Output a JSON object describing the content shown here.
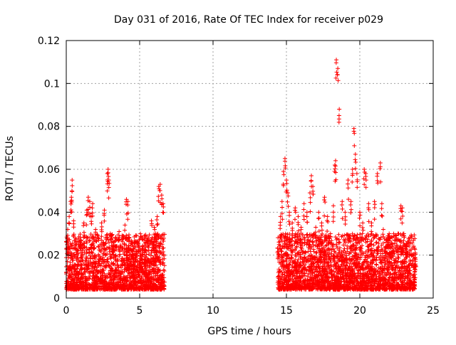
{
  "chart_data": {
    "type": "scatter",
    "title": "Day 031 of 2016, Rate Of TEC Index for receiver p029",
    "xlabel": "GPS time / hours",
    "ylabel": "ROTI / TECUs",
    "xlim": [
      0,
      25
    ],
    "ylim": [
      0,
      0.12
    ],
    "xticks": [
      0,
      5,
      10,
      15,
      20,
      25
    ],
    "yticks": [
      0,
      0.02,
      0.04,
      0.06,
      0.08,
      0.1,
      0.12
    ],
    "xtick_labels": [
      "0",
      "5",
      "10",
      "15",
      "20",
      "25"
    ],
    "ytick_labels": [
      "0",
      "0.02",
      "0.04",
      "0.06",
      "0.08",
      "0.1",
      "0.12"
    ],
    "grid": true,
    "marker": "+",
    "color": "#ff0000",
    "series": [
      {
        "x": [
          0.1,
          0.2,
          0.3,
          0.35,
          0.4,
          0.5,
          0.6,
          0.7,
          0.8,
          1.0,
          1.2,
          1.4,
          1.5,
          1.6,
          1.7,
          1.8,
          2.0,
          2.2,
          2.4,
          2.6,
          2.8,
          2.85,
          2.9,
          3.0,
          3.2,
          3.4,
          3.6,
          3.8,
          4.0,
          4.1,
          4.2,
          4.3,
          4.4,
          4.6,
          4.8,
          5.0,
          5.2,
          5.4,
          5.6,
          5.8,
          6.0,
          6.1,
          6.2,
          6.3,
          6.4,
          6.5,
          6.6,
          14.5,
          14.6,
          14.7,
          14.8,
          14.9,
          15.0,
          15.1,
          15.2,
          15.4,
          15.6,
          15.8,
          16.0,
          16.2,
          16.4,
          16.6,
          16.7,
          16.8,
          17.0,
          17.2,
          17.4,
          17.6,
          17.8,
          18.0,
          18.2,
          18.3,
          18.35,
          18.4,
          18.5,
          18.6,
          18.8,
          19.0,
          19.2,
          19.4,
          19.5,
          19.6,
          19.7,
          19.8,
          20.0,
          20.2,
          20.3,
          20.4,
          20.6,
          20.8,
          21.0,
          21.2,
          21.4,
          21.5,
          21.6,
          21.8,
          22.0,
          22.2,
          22.4,
          22.6,
          22.8,
          22.9,
          23.0,
          23.2,
          23.4,
          23.6,
          23.8
        ],
        "y": [
          0.032,
          0.038,
          0.045,
          0.047,
          0.055,
          0.036,
          0.028,
          0.025,
          0.022,
          0.027,
          0.035,
          0.041,
          0.047,
          0.045,
          0.038,
          0.044,
          0.032,
          0.028,
          0.035,
          0.041,
          0.058,
          0.06,
          0.055,
          0.03,
          0.024,
          0.027,
          0.031,
          0.029,
          0.034,
          0.046,
          0.045,
          0.028,
          0.02,
          0.018,
          0.02,
          0.016,
          0.024,
          0.019,
          0.028,
          0.036,
          0.033,
          0.03,
          0.038,
          0.052,
          0.053,
          0.048,
          0.044,
          0.025,
          0.038,
          0.045,
          0.059,
          0.065,
          0.055,
          0.049,
          0.04,
          0.035,
          0.042,
          0.038,
          0.033,
          0.044,
          0.04,
          0.049,
          0.057,
          0.052,
          0.033,
          0.04,
          0.035,
          0.047,
          0.038,
          0.03,
          0.043,
          0.062,
          0.064,
          0.111,
          0.107,
          0.088,
          0.045,
          0.04,
          0.055,
          0.045,
          0.06,
          0.079,
          0.067,
          0.058,
          0.04,
          0.035,
          0.06,
          0.058,
          0.044,
          0.035,
          0.045,
          0.058,
          0.063,
          0.044,
          0.032,
          0.026,
          0.03,
          0.024,
          0.029,
          0.03,
          0.043,
          0.042,
          0.03,
          0.025,
          0.022,
          0.02,
          0.018
        ]
      }
    ]
  }
}
